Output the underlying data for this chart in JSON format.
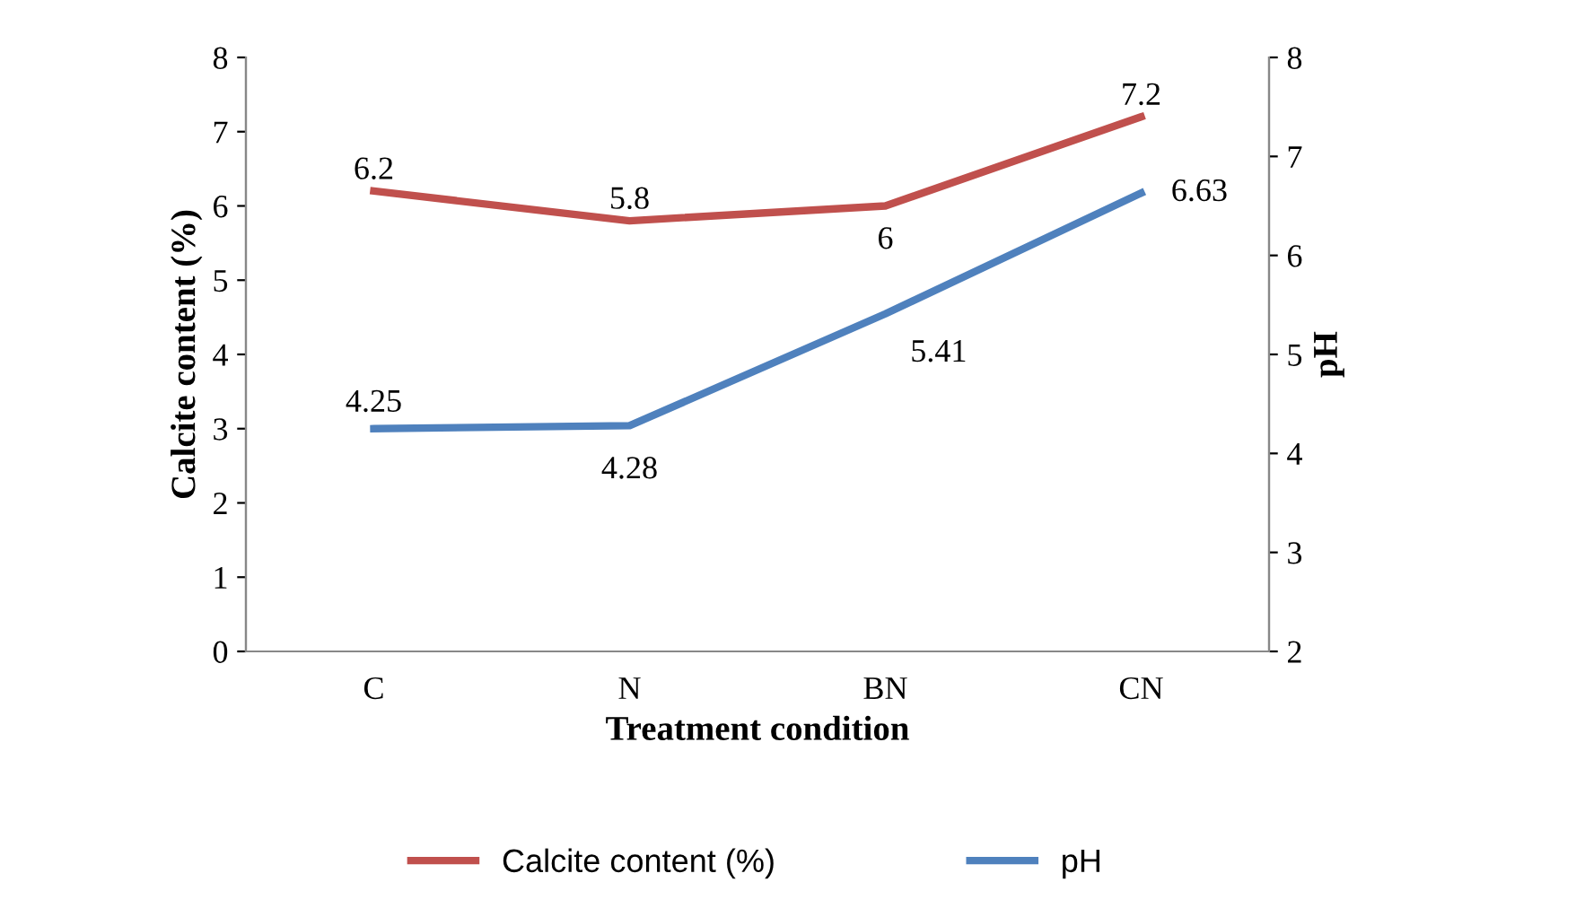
{
  "chart_data": {
    "type": "line",
    "xlabel": "Treatment condition",
    "ylabel": "Calcite content (%)",
    "y2label": "pH",
    "categories": [
      "C",
      "N",
      "BN",
      "CN"
    ],
    "series": [
      {
        "name": "Calcite content (%)",
        "color": "#c0504d",
        "values": [
          6.2,
          5.8,
          6,
          7.2
        ]
      },
      {
        "name": "pH",
        "color": "#4f81bd",
        "values": [
          4.25,
          4.28,
          5.41,
          6.63
        ],
        "axis": "y2"
      }
    ],
    "ylim": [
      0,
      8
    ],
    "yticks": [
      0,
      1,
      2,
      3,
      4,
      5,
      6,
      7,
      8
    ],
    "y2lim": [
      2,
      8
    ],
    "y2ticks": [
      2,
      3,
      4,
      5,
      6,
      7,
      8
    ],
    "data_labels": true,
    "legend": "bottom",
    "grid": false,
    "marker": "none",
    "line_style": "solid"
  }
}
